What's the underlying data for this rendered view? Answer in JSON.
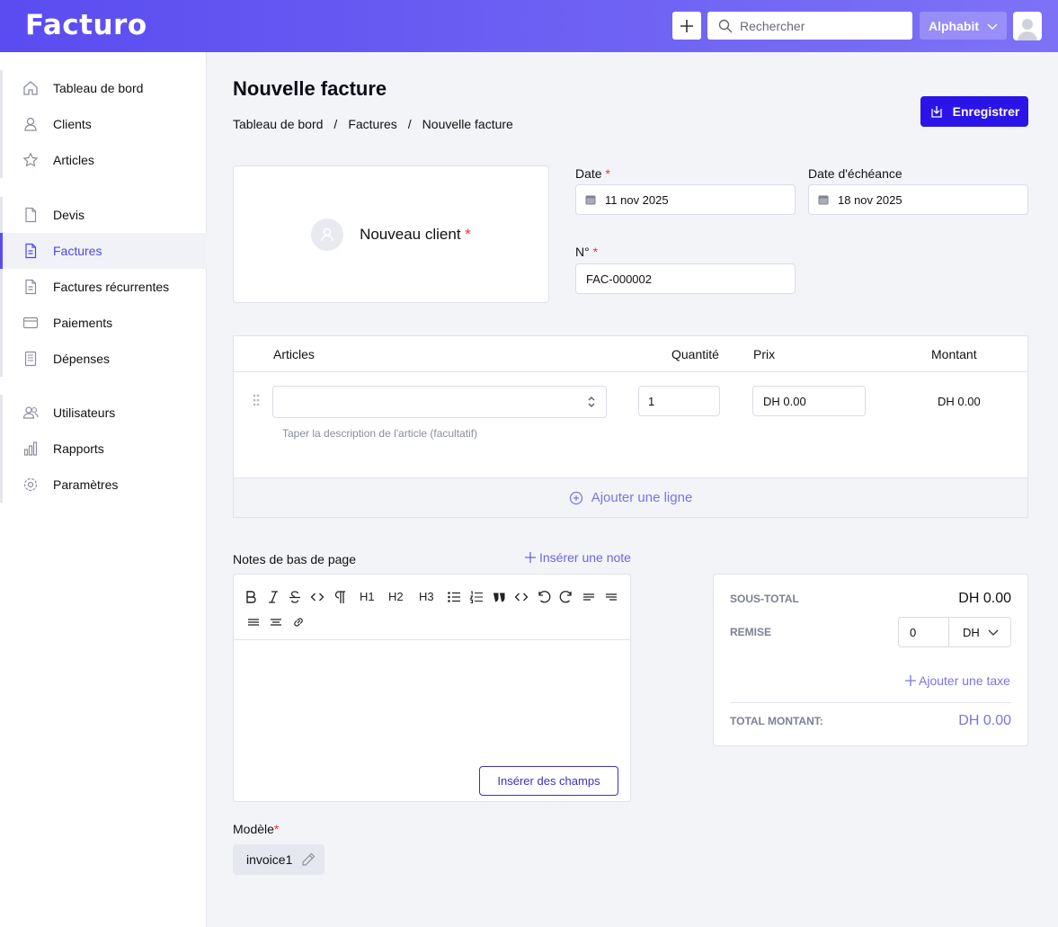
{
  "app": {
    "logo": "Facturo"
  },
  "header": {
    "search_placeholder": "Rechercher",
    "company": "Alphabit"
  },
  "sidebar": {
    "groups": [
      [
        {
          "label": "Tableau de bord",
          "icon": "home-icon"
        },
        {
          "label": "Clients",
          "icon": "user-icon"
        },
        {
          "label": "Articles",
          "icon": "star-icon"
        }
      ],
      [
        {
          "label": "Devis",
          "icon": "document-icon"
        },
        {
          "label": "Factures",
          "icon": "invoice-icon",
          "active": true
        },
        {
          "label": "Factures récurrentes",
          "icon": "recurring-invoice-icon"
        },
        {
          "label": "Paiements",
          "icon": "credit-card-icon"
        },
        {
          "label": "Dépenses",
          "icon": "receipt-icon"
        }
      ],
      [
        {
          "label": "Utilisateurs",
          "icon": "users-icon"
        },
        {
          "label": "Rapports",
          "icon": "chart-icon"
        },
        {
          "label": "Paramètres",
          "icon": "gear-icon"
        }
      ]
    ]
  },
  "page": {
    "title": "Nouvelle facture",
    "breadcrumb": [
      "Tableau de bord",
      "Factures",
      "Nouvelle facture"
    ],
    "breadcrumb_sep": "/",
    "save_label": "Enregistrer"
  },
  "client": {
    "label": "Nouveau client",
    "required_mark": "*"
  },
  "fields": {
    "date_label": "Date",
    "date_value": "11 nov 2025",
    "due_label": "Date d'échéance",
    "due_value": "18 nov 2025",
    "number_label": "N°",
    "number_value": "FAC-000002",
    "required_mark": "*"
  },
  "items": {
    "headers": {
      "articles": "Articles",
      "quantity": "Quantité",
      "price": "Prix",
      "amount": "Montant"
    },
    "row": {
      "quantity": "1",
      "price": "DH 0.00",
      "amount": "DH 0.00",
      "description_placeholder": "Taper la description de l'article (facultatif)"
    },
    "add_line": "Ajouter une ligne"
  },
  "notes": {
    "label": "Notes de bas de page",
    "insert_note": "Insérer une note",
    "toolbar": {
      "h1": "H1",
      "h2": "H2",
      "h3": "H3"
    },
    "insert_fields": "Insérer des champs"
  },
  "totals": {
    "subtotal_label": "SOUS-TOTAL",
    "subtotal_value": "DH 0.00",
    "discount_label": "REMISE",
    "discount_value": "0",
    "discount_unit": "DH",
    "add_tax": "Ajouter une taxe",
    "total_label": "TOTAL MONTANT:",
    "total_value": "DH 0.00"
  },
  "template": {
    "label": "Modèle",
    "required_mark": "*",
    "value": "invoice1"
  },
  "colors": {
    "accent": "#5a4cf0",
    "primary_button": "#2b14e8",
    "link": "#7a74e6",
    "required": "#e53935"
  }
}
